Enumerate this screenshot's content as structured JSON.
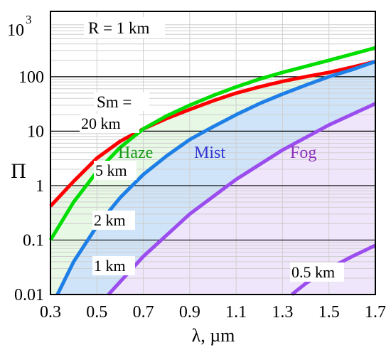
{
  "chart_data": {
    "type": "line",
    "ylabel": "Π",
    "xlabel": "λ, µm",
    "xlim": [
      0.3,
      1.7
    ],
    "ylim": [
      0.01,
      1000
    ],
    "yscale": "log",
    "grid": true,
    "x_ticks": [
      0.3,
      0.5,
      0.7,
      0.9,
      1.1,
      1.3,
      1.5,
      1.7
    ],
    "x_tick_labels": [
      "0.3",
      "0.5",
      "0.7",
      "0.9",
      "1.1",
      "1.3",
      "1.5",
      "1.7"
    ],
    "y_ticks": [
      0.01,
      0.1,
      1,
      10,
      100
    ],
    "y_tick_labels": [
      "0.01",
      "0.1",
      "1",
      "10",
      "100"
    ],
    "y_top_tick": {
      "value": 1000,
      "base": "10",
      "exp": "3"
    },
    "annotation_r": "R = 1 km",
    "annotation_sm": "Sm =",
    "series": [
      {
        "label": "20 km",
        "color": "#ff0000",
        "x": [
          0.3,
          0.4,
          0.5,
          0.6,
          0.7,
          0.8,
          0.9,
          1.0,
          1.1,
          1.2,
          1.3,
          1.4,
          1.5,
          1.6,
          1.7
        ],
        "y": [
          0.42,
          1.2,
          3.2,
          6.5,
          11,
          17,
          25,
          36,
          50,
          65,
          82,
          100,
          120,
          150,
          190
        ]
      },
      {
        "label": "5 km",
        "color": "#00dd00",
        "x": [
          0.3,
          0.4,
          0.5,
          0.6,
          0.7,
          0.8,
          0.9,
          1.0,
          1.1,
          1.2,
          1.3,
          1.4,
          1.5,
          1.6,
          1.7
        ],
        "y": [
          0.1,
          0.5,
          1.8,
          5,
          11,
          19,
          30,
          45,
          65,
          90,
          120,
          155,
          200,
          260,
          340
        ]
      },
      {
        "label": "2 km",
        "color": "#1e7fe6",
        "x": [
          0.33,
          0.4,
          0.5,
          0.6,
          0.7,
          0.8,
          0.9,
          1.0,
          1.1,
          1.2,
          1.3,
          1.4,
          1.5,
          1.6,
          1.7
        ],
        "y": [
          0.01,
          0.04,
          0.18,
          0.6,
          1.6,
          3.5,
          7,
          12,
          20,
          32,
          48,
          70,
          100,
          135,
          190
        ]
      },
      {
        "label": "1 km",
        "color": "#9b4dee",
        "x": [
          0.55,
          0.7,
          0.9,
          1.1,
          1.3,
          1.5,
          1.7
        ],
        "y": [
          0.01,
          0.05,
          0.3,
          1.3,
          4.5,
          13,
          32
        ]
      },
      {
        "label": "0.5 km",
        "color": "#9b4dee",
        "x": [
          1.34,
          1.4,
          1.5,
          1.6,
          1.7
        ],
        "y": [
          0.01,
          0.016,
          0.03,
          0.05,
          0.08
        ]
      }
    ],
    "regions": [
      {
        "name": "Haze",
        "color": "#1a9a1a",
        "fill": "#e7f8e4"
      },
      {
        "name": "Mist",
        "color": "#3535d0",
        "fill": "#cfe4f8"
      },
      {
        "name": "Fog",
        "color": "#8a2fb8",
        "fill": "#f0e6fb"
      }
    ]
  }
}
